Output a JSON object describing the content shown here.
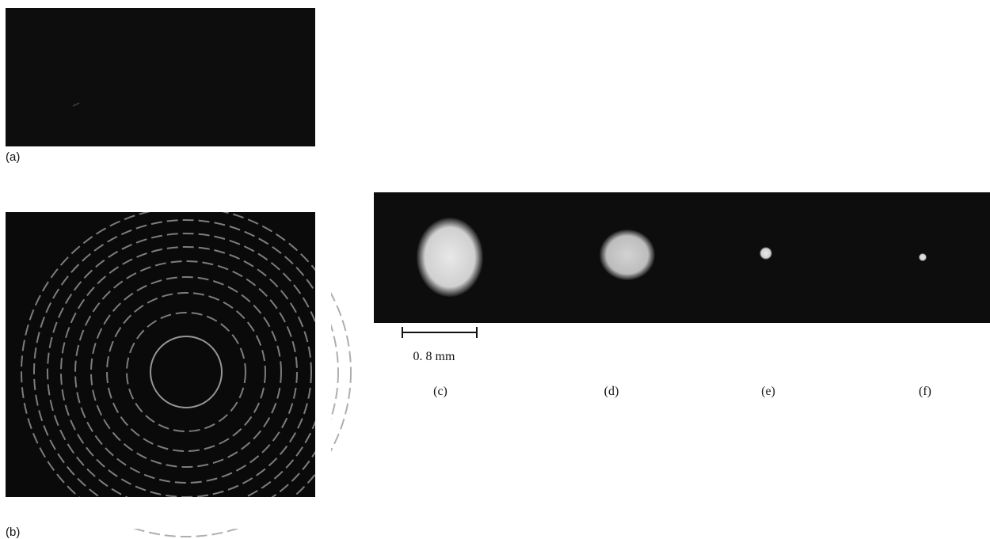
{
  "figure": {
    "labels": {
      "a": "(a)",
      "b": "(b)",
      "c": "(c)",
      "d": "(d)",
      "e": "(e)",
      "f": "(f)"
    },
    "scale_bar": "0. 8 mm"
  }
}
